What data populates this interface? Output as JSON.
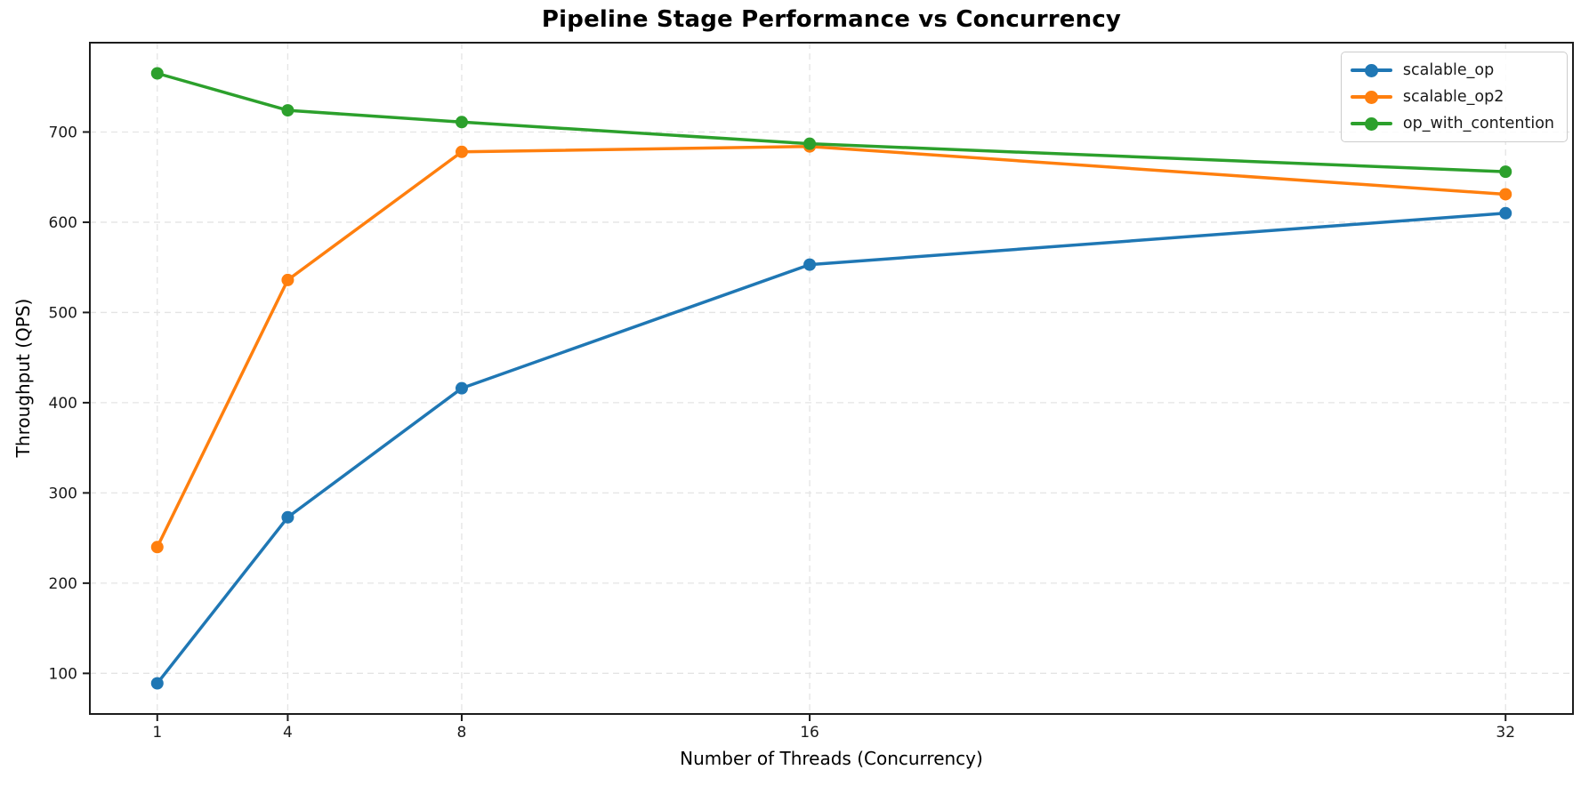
{
  "title": "Pipeline Stage Performance vs Concurrency",
  "chart_data": {
    "type": "line",
    "title": "Pipeline Stage Performance vs Concurrency",
    "xlabel": "Number of Threads (Concurrency)",
    "ylabel": "Throughput (QPS)",
    "x_type": "linear",
    "x": [
      1,
      4,
      8,
      16,
      32
    ],
    "series": [
      {
        "name": "scalable_op",
        "color": "#1f77b4",
        "values": [
          89,
          273,
          416,
          553,
          610
        ]
      },
      {
        "name": "scalable_op2",
        "color": "#ff7f0e",
        "values": [
          240,
          536,
          678,
          684,
          631
        ]
      },
      {
        "name": "op_with_contention",
        "color": "#2ca02c",
        "values": [
          765,
          724,
          711,
          687,
          656
        ]
      }
    ],
    "xticks": [
      1,
      4,
      8,
      16,
      32
    ],
    "xtick_labels": [
      "1",
      "4",
      "8",
      "16",
      "32"
    ],
    "yticks": [
      100,
      200,
      300,
      400,
      500,
      600,
      700
    ],
    "ytick_labels": [
      "100",
      "200",
      "300",
      "400",
      "500",
      "600",
      "700"
    ],
    "xlim": [
      -0.55,
      33.55
    ],
    "ylim": [
      55,
      799
    ],
    "grid": true,
    "grid_style": "dashed",
    "grid_color": "#e4e4e4",
    "spine_color": "#1c1c1c",
    "marker": "o",
    "legend_position": "upper right",
    "legend_entries": [
      "scalable_op",
      "scalable_op2",
      "op_with_contention"
    ]
  }
}
